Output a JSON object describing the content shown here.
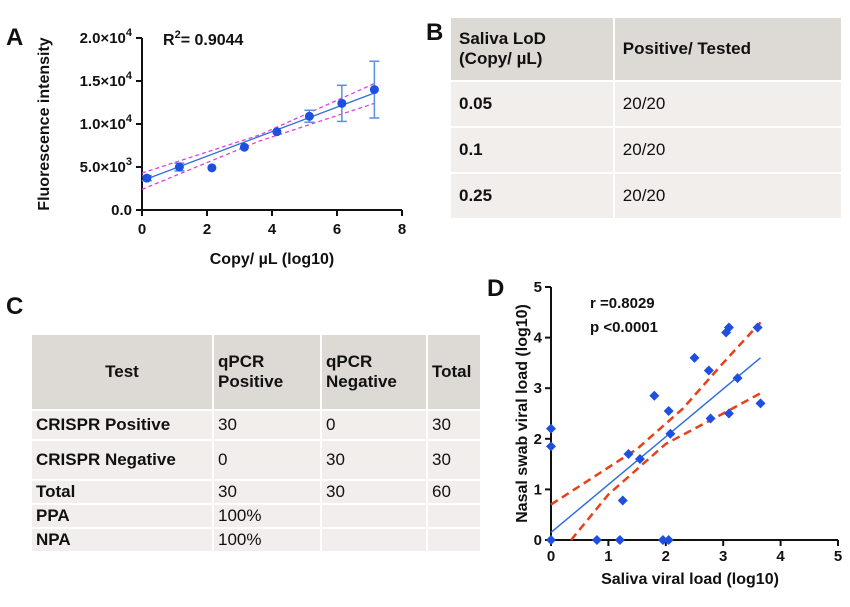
{
  "panels": {
    "a": "A",
    "b": "B",
    "c": "C",
    "d": "D"
  },
  "chart_data": [
    {
      "type": "scatter",
      "panel": "A",
      "xlabel": "Copy/ µL (log10)",
      "ylabel": "Fluorescence intensity",
      "annotation": "R",
      "annotation_sup": "2",
      "annotation_value": "= 0.9044",
      "xlim": [
        0,
        8
      ],
      "ylim": [
        0,
        20000
      ],
      "x_ticks": [
        "0",
        "2",
        "4",
        "6",
        "8"
      ],
      "y_ticks": [
        {
          "v": 0,
          "m": "0.0",
          "e": ""
        },
        {
          "v": 5000,
          "m": "5.0×10",
          "e": "3"
        },
        {
          "v": 10000,
          "m": "1.0×10",
          "e": "4"
        },
        {
          "v": 15000,
          "m": "1.5×10",
          "e": "4"
        },
        {
          "v": 20000,
          "m": "2.0×10",
          "e": "4"
        }
      ],
      "points": [
        {
          "x": 0.15,
          "y": 3700,
          "err": 300
        },
        {
          "x": 1.15,
          "y": 5000,
          "err": 450
        },
        {
          "x": 2.15,
          "y": 4900,
          "err": 0
        },
        {
          "x": 3.15,
          "y": 7300,
          "err": 0
        },
        {
          "x": 4.15,
          "y": 9100,
          "err": 0
        },
        {
          "x": 5.15,
          "y": 10900,
          "err": 700
        },
        {
          "x": 6.15,
          "y": 12400,
          "err": 2100
        },
        {
          "x": 7.15,
          "y": 14000,
          "err": 3300
        }
      ],
      "fit": {
        "x": [
          0,
          7.15
        ],
        "y": [
          3400,
          13600
        ]
      },
      "ci_upper": {
        "x": [
          0,
          3.6,
          7.15
        ],
        "y": [
          4300,
          8700,
          14700
        ]
      },
      "ci_lower": {
        "x": [
          0,
          3.6,
          7.15
        ],
        "y": [
          2400,
          8000,
          12400
        ]
      },
      "colors": {
        "point": "#1f4fe0",
        "fit": "#2f6fdb",
        "ci": "#e040e0",
        "error": "#5b8fe0"
      }
    },
    {
      "type": "scatter",
      "panel": "D",
      "xlabel": "Saliva viral load (log10)",
      "ylabel": "Nasal swab viral load (log10)",
      "annotation_r": "r =0.8029",
      "annotation_p": "p <0.0001",
      "xlim": [
        0,
        5
      ],
      "ylim": [
        0,
        5
      ],
      "x_ticks": [
        "0",
        "1",
        "2",
        "3",
        "4",
        "5"
      ],
      "y_ticks": [
        "0",
        "1",
        "2",
        "3",
        "4",
        "5"
      ],
      "points": [
        {
          "x": 0.0,
          "y": 2.2
        },
        {
          "x": 0.0,
          "y": 1.85
        },
        {
          "x": 0.0,
          "y": 0.0
        },
        {
          "x": 0.8,
          "y": 0.0
        },
        {
          "x": 1.2,
          "y": 0.0
        },
        {
          "x": 1.25,
          "y": 0.78
        },
        {
          "x": 1.35,
          "y": 1.7
        },
        {
          "x": 1.55,
          "y": 1.6
        },
        {
          "x": 1.8,
          "y": 2.85
        },
        {
          "x": 1.95,
          "y": 0.0
        },
        {
          "x": 2.05,
          "y": 0.0
        },
        {
          "x": 2.05,
          "y": 2.55
        },
        {
          "x": 2.08,
          "y": 2.1
        },
        {
          "x": 2.5,
          "y": 3.6
        },
        {
          "x": 2.75,
          "y": 3.35
        },
        {
          "x": 2.78,
          "y": 2.4
        },
        {
          "x": 3.05,
          "y": 4.1
        },
        {
          "x": 3.1,
          "y": 4.2
        },
        {
          "x": 3.1,
          "y": 2.5
        },
        {
          "x": 3.25,
          "y": 3.2
        },
        {
          "x": 3.6,
          "y": 4.2
        },
        {
          "x": 3.65,
          "y": 2.7
        }
      ],
      "fit": {
        "x": [
          0,
          3.65
        ],
        "y": [
          0.15,
          3.6
        ]
      },
      "ci_upper": {
        "x": [
          0,
          1.5,
          2.3,
          3.0,
          3.65
        ],
        "y": [
          0.7,
          1.8,
          2.6,
          3.5,
          4.3
        ]
      },
      "ci_lower": {
        "x": [
          0.35,
          1.0,
          2.0,
          3.0,
          3.65
        ],
        "y": [
          0.0,
          0.9,
          1.9,
          2.5,
          2.9
        ]
      },
      "colors": {
        "point": "#1f4fe0",
        "fit": "#2f6fdb",
        "ci": "#e8401a"
      }
    }
  ],
  "table_b": {
    "headers": [
      "Saliva LoD",
      "(Copy/ µL)",
      "Positive/ Tested"
    ],
    "rows": [
      {
        "lod": "0.05",
        "result": "20/20"
      },
      {
        "lod": "0.1",
        "result": "20/20"
      },
      {
        "lod": "0.25",
        "result": "20/20"
      }
    ]
  },
  "table_c": {
    "headers": {
      "test": "Test",
      "qpcr_pos_1": "qPCR",
      "qpcr_pos_2": "Positive",
      "qpcr_neg_1": "qPCR",
      "qpcr_neg_2": "Negative",
      "total": "Total"
    },
    "rows": [
      {
        "label": "CRISPR Positive",
        "pos": "30",
        "neg": "0",
        "total": "30"
      },
      {
        "label": "CRISPR Negative",
        "pos": "0",
        "neg": "30",
        "total": "30"
      },
      {
        "label": "Total",
        "pos": "30",
        "neg": "30",
        "total": "60"
      },
      {
        "label": "PPA",
        "pos": "100%",
        "neg": "",
        "total": ""
      },
      {
        "label": "NPA",
        "pos": "100%",
        "neg": "",
        "total": ""
      }
    ]
  }
}
